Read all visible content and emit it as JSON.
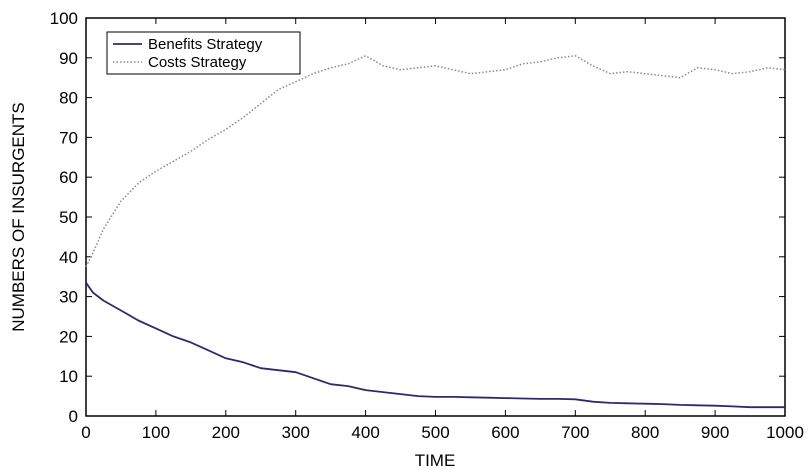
{
  "chart_data": {
    "type": "line",
    "title": "",
    "xlabel": "TIME",
    "ylabel": "NUMBERS OF INSURGENTS",
    "xlim": [
      0,
      1000
    ],
    "ylim": [
      0,
      100
    ],
    "x_ticks": [
      "0",
      "100",
      "200",
      "300",
      "400",
      "500",
      "600",
      "700",
      "800",
      "900",
      "1000"
    ],
    "y_ticks": [
      "0",
      "10",
      "20",
      "30",
      "40",
      "50",
      "60",
      "70",
      "80",
      "90",
      "100"
    ],
    "grid": false,
    "legend_position": "top-left",
    "series": [
      {
        "name": "Benefits Strategy",
        "color": "#2e2a6e",
        "style": "solid",
        "x": [
          0,
          10,
          25,
          50,
          75,
          100,
          125,
          150,
          175,
          200,
          225,
          250,
          275,
          300,
          325,
          350,
          375,
          400,
          425,
          450,
          475,
          500,
          525,
          550,
          575,
          600,
          625,
          650,
          675,
          700,
          725,
          750,
          775,
          800,
          825,
          850,
          875,
          900,
          925,
          950,
          975,
          1000
        ],
        "values": [
          33.5,
          31,
          29,
          26.5,
          24,
          22,
          20,
          18.5,
          16.5,
          14.5,
          13.5,
          12,
          11.5,
          11,
          9.5,
          8,
          7.5,
          6.5,
          6,
          5.5,
          5,
          4.8,
          4.8,
          4.7,
          4.6,
          4.5,
          4.4,
          4.3,
          4.3,
          4.2,
          3.6,
          3.3,
          3.2,
          3.1,
          3,
          2.8,
          2.7,
          2.6,
          2.4,
          2.2,
          2.2,
          2.2
        ]
      },
      {
        "name": "Costs Strategy",
        "color": "#8a8a8a",
        "style": "dotted",
        "x": [
          0,
          10,
          25,
          50,
          75,
          100,
          125,
          150,
          175,
          200,
          225,
          250,
          275,
          300,
          325,
          350,
          375,
          400,
          425,
          450,
          475,
          500,
          525,
          550,
          575,
          600,
          625,
          650,
          675,
          700,
          725,
          750,
          775,
          800,
          825,
          850,
          875,
          900,
          925,
          950,
          975,
          1000
        ],
        "values": [
          37.5,
          41,
          47,
          54,
          58.5,
          61.5,
          64,
          66.5,
          69.5,
          72,
          75,
          78.5,
          82,
          84,
          86,
          87.5,
          88.5,
          90.5,
          88,
          87,
          87.5,
          88,
          87,
          86,
          86.5,
          87,
          88.5,
          89,
          90,
          90.5,
          88,
          86,
          86.5,
          86,
          85.5,
          85,
          87.5,
          87,
          86,
          86.5,
          87.5,
          87
        ]
      }
    ]
  }
}
